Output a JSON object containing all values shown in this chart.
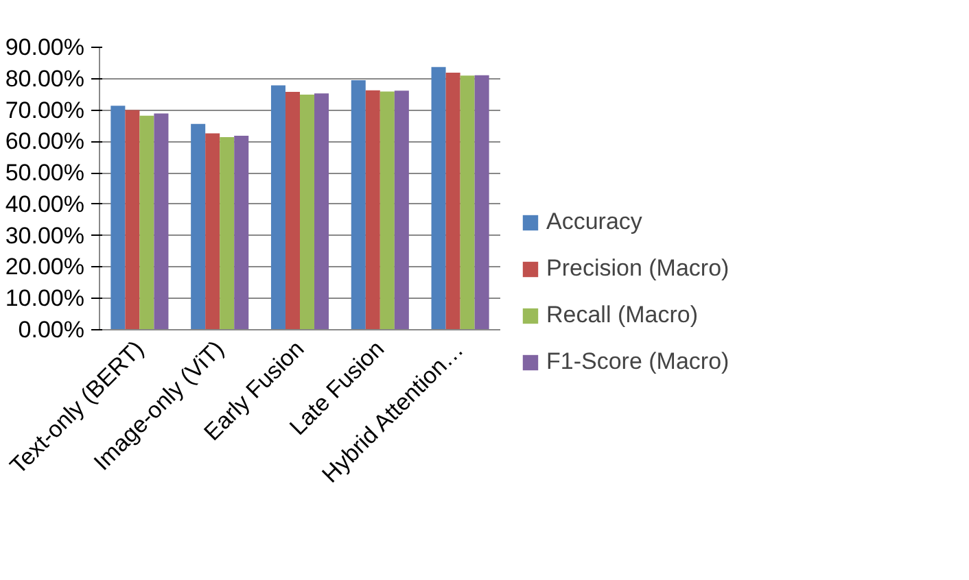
{
  "chart_data": {
    "type": "bar",
    "categories": [
      "Text-only (BERT)",
      "Image-only (ViT)",
      "Early Fusion",
      "Late Fusion",
      "Hybrid Attention…"
    ],
    "series": [
      {
        "name": "Accuracy",
        "color": "#4f81bd",
        "values": [
          71.4,
          65.6,
          77.9,
          79.5,
          83.7
        ]
      },
      {
        "name": "Precision (Macro)",
        "color": "#c0504d",
        "values": [
          70.0,
          62.6,
          75.8,
          76.3,
          81.9
        ]
      },
      {
        "name": "Recall (Macro)",
        "color": "#9bbb59",
        "values": [
          68.2,
          61.4,
          74.9,
          75.9,
          81.0
        ]
      },
      {
        "name": "F1-Score (Macro)",
        "color": "#8064a2",
        "values": [
          68.9,
          61.8,
          75.3,
          76.2,
          81.1
        ]
      }
    ],
    "ylim": [
      0,
      90
    ],
    "yticks": [
      {
        "value": 0,
        "label": "0.00%"
      },
      {
        "value": 10,
        "label": "10.00%"
      },
      {
        "value": 20,
        "label": "20.00%"
      },
      {
        "value": 30,
        "label": "30.00%"
      },
      {
        "value": 40,
        "label": "40.00%"
      },
      {
        "value": 50,
        "label": "50.00%"
      },
      {
        "value": 60,
        "label": "60.00%"
      },
      {
        "value": 70,
        "label": "70.00%"
      },
      {
        "value": 80,
        "label": "80.00%"
      },
      {
        "value": 90,
        "label": "90.00%"
      }
    ],
    "grid": "y",
    "legend": "right"
  }
}
